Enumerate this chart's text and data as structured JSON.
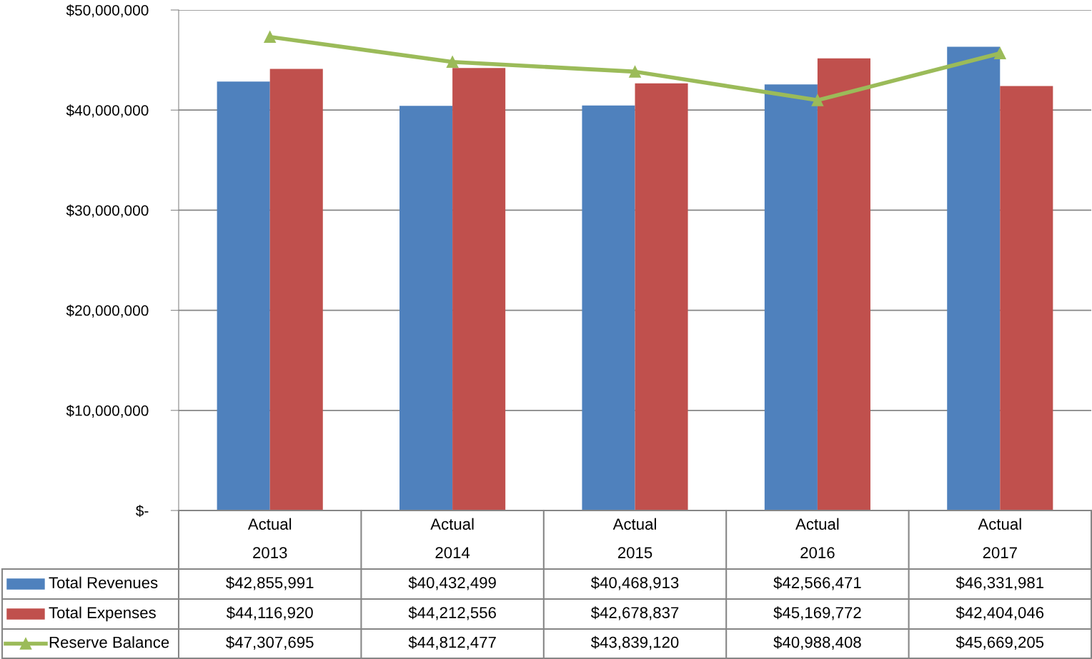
{
  "chart_data": {
    "type": "bar",
    "categories": [
      "Actual\n2013",
      "Actual\n2014",
      "Actual\n2015",
      "Actual\n2016",
      "Actual\n2017"
    ],
    "series": [
      {
        "name": "Total Revenues",
        "color": "#4f81bd",
        "values": [
          42855991,
          40432499,
          40468913,
          42566471,
          46331981
        ],
        "value_labels": [
          "$42,855,991",
          "$40,432,499",
          "$40,468,913",
          "$42,566,471",
          "$46,331,981"
        ]
      },
      {
        "name": "Total Expenses",
        "color": "#c0504d",
        "values": [
          44116920,
          44212556,
          42678837,
          45169772,
          42404046
        ],
        "value_labels": [
          "$44,116,920",
          "$44,212,556",
          "$42,678,837",
          "$45,169,772",
          "$42,404,046"
        ]
      },
      {
        "name": "Reserve Balance",
        "type": "line",
        "color": "#9bbb59",
        "marker": "triangle",
        "values": [
          47307695,
          44812477,
          43839120,
          40988408,
          45669205
        ],
        "value_labels": [
          "$47,307,695",
          "$44,812,477",
          "$43,839,120",
          "$40,988,408",
          "$45,669,205"
        ]
      }
    ],
    "ylim": [
      0,
      50000000
    ],
    "yticks": [
      {
        "value": 0,
        "label": "$-"
      },
      {
        "value": 10000000,
        "label": "$10,000,000"
      },
      {
        "value": 20000000,
        "label": "$20,000,000"
      },
      {
        "value": 30000000,
        "label": "$30,000,000"
      },
      {
        "value": 40000000,
        "label": "$40,000,000"
      },
      {
        "value": 50000000,
        "label": "$50,000,000"
      }
    ],
    "grid": "y",
    "legend": "bottom left"
  }
}
